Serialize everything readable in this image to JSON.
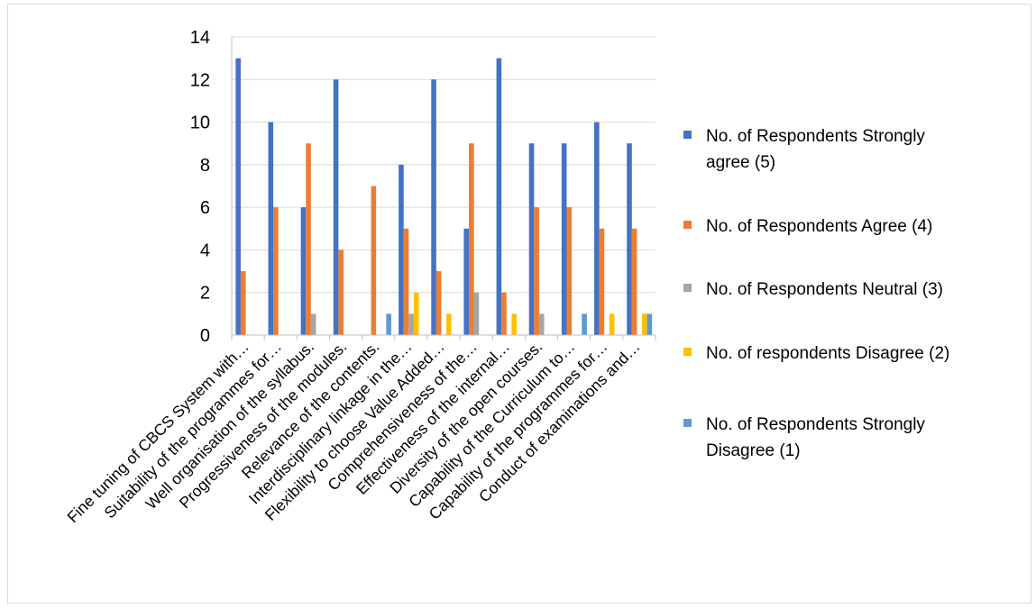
{
  "chart_data": {
    "type": "bar",
    "categories": [
      "Fine tuning of CBCS System with…",
      "Suitability of the programmes for…",
      "Well organisation of the syllabus.",
      "Progressiveness of the modules.",
      "Relevance of the contents.",
      "Interdisciplinary linkage in the…",
      "Flexibility to choose Value Added…",
      "Comprehensiveness of the…",
      "Effectiveness of the internal…",
      "Diversity of the open courses.",
      "Capability of the Curriculum to…",
      "Capability of the programmes for…",
      "Conduct of examinations and…"
    ],
    "series": [
      {
        "name": "No. of Respondents Strongly agree (5)",
        "color": "#4472c4",
        "values": [
          13,
          10,
          6,
          12,
          0,
          8,
          12,
          5,
          13,
          9,
          9,
          10,
          9
        ]
      },
      {
        "name": "No. of Respondents Agree (4)",
        "color": "#ed7d31",
        "values": [
          3,
          6,
          9,
          4,
          7,
          5,
          3,
          9,
          2,
          6,
          6,
          5,
          5
        ]
      },
      {
        "name": "No. of Respondents Neutral (3)",
        "color": "#a5a5a5",
        "values": [
          0,
          0,
          1,
          0,
          0,
          1,
          0,
          2,
          0,
          1,
          0,
          0,
          0
        ]
      },
      {
        "name": "No. of respondents Disagree (2)",
        "color": "#ffc000",
        "values": [
          0,
          0,
          0,
          0,
          0,
          2,
          1,
          0,
          1,
          0,
          0,
          1,
          1
        ]
      },
      {
        "name": "No. of Respondents Strongly Disagree (1)",
        "color": "#5b9bd5",
        "values": [
          0,
          0,
          0,
          0,
          1,
          0,
          0,
          0,
          0,
          0,
          1,
          0,
          1
        ]
      }
    ],
    "ylim": [
      0,
      14
    ],
    "yticks": [
      "0",
      "2",
      "4",
      "6",
      "8",
      "10",
      "12",
      "14"
    ],
    "grid": true,
    "legend_position": "right"
  }
}
